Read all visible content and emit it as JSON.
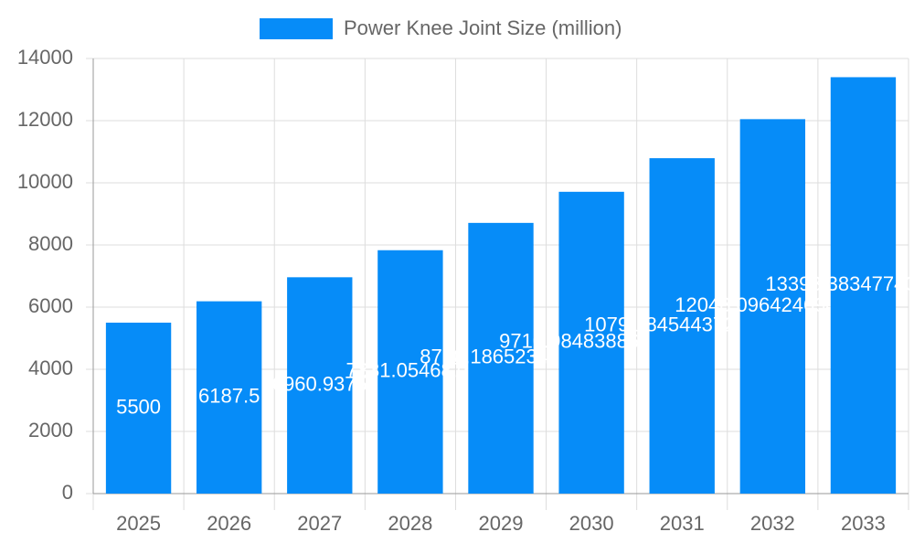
{
  "chart_data": {
    "type": "bar",
    "categories": [
      "2025",
      "2026",
      "2027",
      "2028",
      "2029",
      "2030",
      "2031",
      "2032",
      "2033"
    ],
    "series": [
      {
        "name": "Power Knee Joint Size (million)",
        "color": "#068cf8",
        "values": [
          5500,
          6187.5,
          6960.9375,
          7831.0546875,
          8710.1865234375,
          9710.984838867187,
          10791.845443725586,
          12048.096424694337,
          13398.383477401732
        ]
      }
    ],
    "ylim": [
      0,
      14000
    ],
    "yticks": [
      0,
      2000,
      4000,
      6000,
      8000,
      10000,
      12000,
      14000
    ],
    "grid": true,
    "legend": "top"
  }
}
